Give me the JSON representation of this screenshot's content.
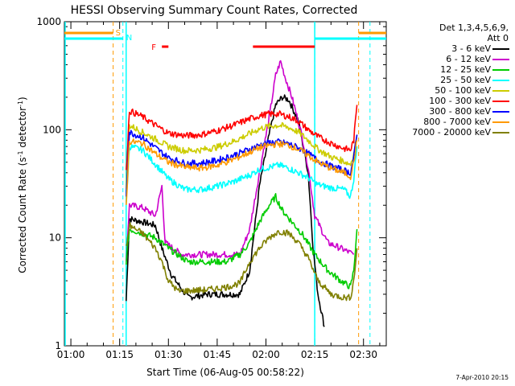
{
  "chart_data": {
    "type": "line",
    "title": "HESSI Observing Summary Count Rates, Corrected",
    "xlabel": "Start Time (06-Aug-05 00:58:22)",
    "ylabel_parts": [
      "Corrected Count Rate (s",
      "-1",
      " detector",
      "-1",
      ")"
    ],
    "yscale": "log",
    "xlim_minutes": [
      -2,
      97
    ],
    "ylim": [
      1,
      1000
    ],
    "x_ticks": [
      "01:00",
      "01:15",
      "01:30",
      "01:45",
      "02:00",
      "02:15",
      "02:30"
    ],
    "x_tick_minutes": [
      0,
      15,
      30,
      45,
      60,
      75,
      90
    ],
    "y_ticks": [
      "1",
      "10",
      "100",
      "1000"
    ],
    "y_tick_values": [
      1,
      10,
      100,
      1000
    ],
    "legend_header": [
      "Det 1,3,4,5,6,9,",
      "Att 0"
    ],
    "legend_placement": "right, outside",
    "series": [
      {
        "name": "3 - 6 keV",
        "color": "#000000",
        "points": [
          [
            17,
            2.6
          ],
          [
            18,
            15
          ],
          [
            22,
            14
          ],
          [
            26,
            13
          ],
          [
            28,
            8
          ],
          [
            31,
            4.5
          ],
          [
            36,
            2.8
          ],
          [
            42,
            3
          ],
          [
            48,
            3
          ],
          [
            52,
            3
          ],
          [
            55,
            5
          ],
          [
            58,
            30
          ],
          [
            61,
            90
          ],
          [
            63,
            170
          ],
          [
            65,
            200
          ],
          [
            67,
            190
          ],
          [
            70,
            120
          ],
          [
            73,
            40
          ],
          [
            74.5,
            8
          ],
          [
            76,
            3
          ],
          [
            78,
            1.5
          ]
        ]
      },
      {
        "name": "6 - 12 keV",
        "color": "#cc00cc",
        "points": [
          [
            17,
            6
          ],
          [
            18,
            20
          ],
          [
            22,
            19
          ],
          [
            26,
            16
          ],
          [
            28,
            30
          ],
          [
            29,
            9
          ],
          [
            34,
            7
          ],
          [
            42,
            7
          ],
          [
            48,
            7
          ],
          [
            52,
            7
          ],
          [
            55,
            12
          ],
          [
            58,
            40
          ],
          [
            61,
            130
          ],
          [
            63,
            320
          ],
          [
            64.5,
            430
          ],
          [
            66,
            300
          ],
          [
            68,
            200
          ],
          [
            71,
            90
          ],
          [
            73,
            45
          ],
          [
            75,
            16
          ],
          [
            79,
            9
          ],
          [
            83,
            8
          ],
          [
            87,
            7
          ]
        ]
      },
      {
        "name": "12 - 25 keV",
        "color": "#00cc00",
        "points": [
          [
            17,
            6
          ],
          [
            18,
            12
          ],
          [
            22,
            11
          ],
          [
            26,
            10
          ],
          [
            30,
            8
          ],
          [
            36,
            6
          ],
          [
            42,
            6
          ],
          [
            48,
            6
          ],
          [
            52,
            7
          ],
          [
            55,
            9
          ],
          [
            58,
            14
          ],
          [
            61,
            20
          ],
          [
            63,
            24
          ],
          [
            65,
            18
          ],
          [
            68,
            14
          ],
          [
            71,
            11
          ],
          [
            75,
            7
          ],
          [
            79,
            5
          ],
          [
            83,
            4
          ],
          [
            86,
            3.5
          ],
          [
            87,
            5
          ],
          [
            88,
            12
          ]
        ]
      },
      {
        "name": "25 - 50 keV",
        "color": "#00ffff",
        "points": [
          [
            17,
            20
          ],
          [
            18,
            70
          ],
          [
            22,
            65
          ],
          [
            26,
            48
          ],
          [
            30,
            35
          ],
          [
            35,
            28
          ],
          [
            40,
            28
          ],
          [
            45,
            30
          ],
          [
            50,
            33
          ],
          [
            55,
            38
          ],
          [
            58,
            43
          ],
          [
            61,
            45
          ],
          [
            64,
            47
          ],
          [
            67,
            44
          ],
          [
            70,
            40
          ],
          [
            73,
            36
          ],
          [
            76,
            31
          ],
          [
            80,
            29
          ],
          [
            84,
            28
          ],
          [
            86,
            24
          ],
          [
            87,
            35
          ],
          [
            88,
            70
          ]
        ]
      },
      {
        "name": "50 - 100 keV",
        "color": "#cccc00",
        "points": [
          [
            17,
            30
          ],
          [
            18,
            110
          ],
          [
            22,
            95
          ],
          [
            26,
            82
          ],
          [
            30,
            70
          ],
          [
            35,
            64
          ],
          [
            40,
            65
          ],
          [
            45,
            69
          ],
          [
            50,
            78
          ],
          [
            55,
            92
          ],
          [
            58,
            102
          ],
          [
            61,
            108
          ],
          [
            64,
            110
          ],
          [
            67,
            105
          ],
          [
            70,
            95
          ],
          [
            73,
            80
          ],
          [
            76,
            66
          ],
          [
            80,
            56
          ],
          [
            84,
            51
          ],
          [
            86,
            48
          ],
          [
            87,
            60
          ],
          [
            88,
            90
          ]
        ]
      },
      {
        "name": "100 - 300 keV",
        "color": "#ff0000",
        "points": [
          [
            17,
            40
          ],
          [
            18,
            150
          ],
          [
            22,
            132
          ],
          [
            26,
            110
          ],
          [
            30,
            93
          ],
          [
            35,
            88
          ],
          [
            40,
            90
          ],
          [
            45,
            98
          ],
          [
            50,
            110
          ],
          [
            55,
            126
          ],
          [
            58,
            135
          ],
          [
            61,
            140
          ],
          [
            64,
            140
          ],
          [
            67,
            132
          ],
          [
            70,
            120
          ],
          [
            73,
            100
          ],
          [
            76,
            86
          ],
          [
            80,
            75
          ],
          [
            84,
            67
          ],
          [
            86,
            65
          ],
          [
            87,
            80
          ],
          [
            88,
            170
          ]
        ]
      },
      {
        "name": "300 - 800 keV",
        "color": "#0000ff",
        "points": [
          [
            17,
            25
          ],
          [
            18,
            95
          ],
          [
            22,
            85
          ],
          [
            26,
            68
          ],
          [
            30,
            55
          ],
          [
            35,
            49
          ],
          [
            40,
            49
          ],
          [
            45,
            52
          ],
          [
            50,
            58
          ],
          [
            55,
            66
          ],
          [
            58,
            72
          ],
          [
            61,
            76
          ],
          [
            64,
            77
          ],
          [
            67,
            74
          ],
          [
            70,
            68
          ],
          [
            73,
            60
          ],
          [
            76,
            52
          ],
          [
            80,
            46
          ],
          [
            84,
            42
          ],
          [
            86,
            40
          ],
          [
            87,
            55
          ],
          [
            88,
            90
          ]
        ]
      },
      {
        "name": "800 - 7000 keV",
        "color": "#ff9900",
        "points": [
          [
            17,
            20
          ],
          [
            18,
            78
          ],
          [
            22,
            75
          ],
          [
            26,
            60
          ],
          [
            30,
            50
          ],
          [
            35,
            45
          ],
          [
            40,
            44
          ],
          [
            45,
            47
          ],
          [
            50,
            53
          ],
          [
            55,
            62
          ],
          [
            58,
            68
          ],
          [
            61,
            72
          ],
          [
            64,
            74
          ],
          [
            67,
            72
          ],
          [
            70,
            66
          ],
          [
            73,
            58
          ],
          [
            76,
            50
          ],
          [
            80,
            44
          ],
          [
            84,
            40
          ],
          [
            86,
            37
          ],
          [
            87,
            50
          ],
          [
            88,
            80
          ]
        ]
      },
      {
        "name": "7000 - 20000 keV",
        "color": "#808000",
        "points": [
          [
            17,
            8
          ],
          [
            18,
            13
          ],
          [
            22,
            11
          ],
          [
            26,
            8
          ],
          [
            28,
            6
          ],
          [
            30,
            4
          ],
          [
            33,
            3.2
          ],
          [
            42,
            3.3
          ],
          [
            48,
            3.5
          ],
          [
            52,
            3.8
          ],
          [
            55,
            6
          ],
          [
            58,
            8
          ],
          [
            61,
            10
          ],
          [
            64,
            11.5
          ],
          [
            67,
            11
          ],
          [
            70,
            9
          ],
          [
            73,
            6.5
          ],
          [
            76,
            4
          ],
          [
            80,
            3
          ],
          [
            84,
            2.8
          ],
          [
            86,
            2.8
          ],
          [
            87,
            4
          ],
          [
            88,
            8
          ]
        ]
      }
    ],
    "overlays": {
      "S": {
        "label": "S",
        "color": "#ff9900",
        "bar_color": "#ff9900",
        "bars": [
          [
            -2,
            13
          ],
          [
            88.5,
            97
          ]
        ],
        "vlines": [
          13,
          88.5
        ]
      },
      "N": {
        "label": "N",
        "color": "#00ffff",
        "bar_color": "#00ffff",
        "bars": [
          [
            -2,
            16
          ],
          [
            75,
            97
          ]
        ],
        "vlines": [
          16,
          75,
          92
        ]
      },
      "F": {
        "label": "F",
        "color": "#ff0000",
        "bar_color": "#ff0000",
        "bars": [
          [
            28,
            30
          ],
          [
            56,
            75
          ]
        ]
      }
    },
    "extra_lines": {
      "vertical_cyan_solid": [
        17,
        75
      ],
      "vertical_cyan_left_edge": 0
    }
  },
  "footer_text": "7-Apr-2010 20:15"
}
